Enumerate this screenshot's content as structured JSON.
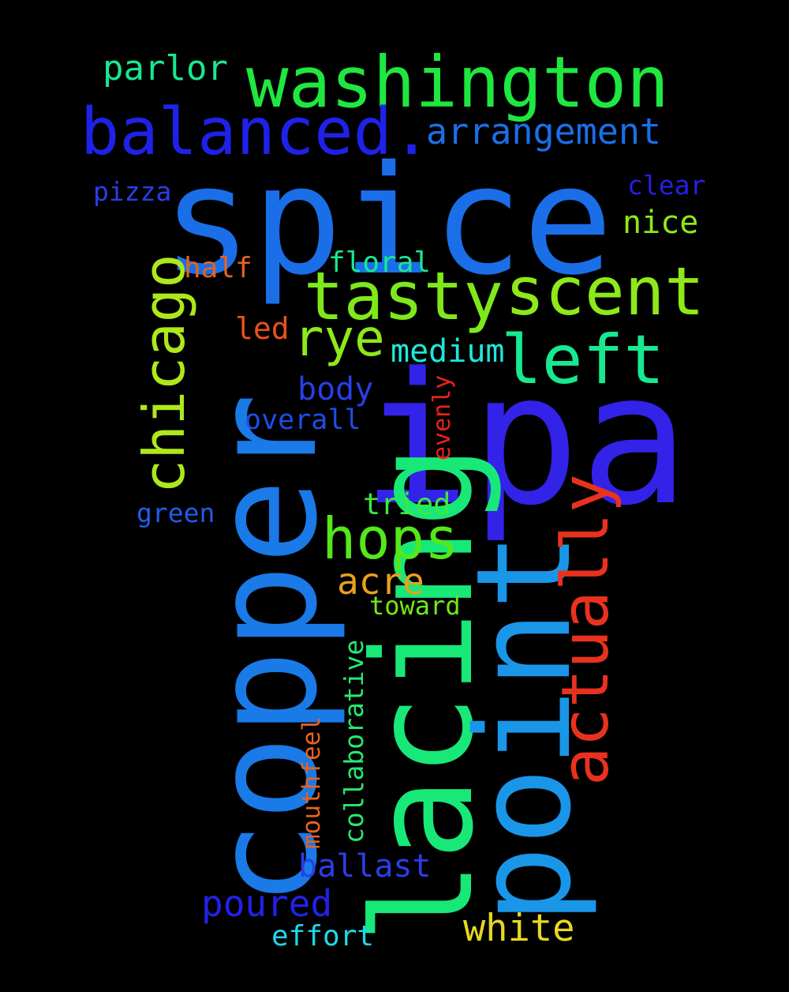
{
  "words": [
    {
      "id": "spice",
      "text": "spice",
      "color": "#1a6fe8",
      "vertical": false
    },
    {
      "id": "ipa",
      "text": "ipa",
      "color": "#3322e8",
      "vertical": false
    },
    {
      "id": "copper",
      "text": "copper",
      "color": "#1a7ae8",
      "vertical": true
    },
    {
      "id": "lacing",
      "text": "lacing",
      "color": "#18e878",
      "vertical": true
    },
    {
      "id": "point",
      "text": "point",
      "color": "#1a96e8",
      "vertical": true
    },
    {
      "id": "washington",
      "text": "washington",
      "color": "#1ee840",
      "vertical": false
    },
    {
      "id": "balanced",
      "text": "balanced.",
      "color": "#1e22e8",
      "vertical": false
    },
    {
      "id": "tasty",
      "text": "tasty",
      "color": "#7fe81a",
      "vertical": false
    },
    {
      "id": "scent",
      "text": "scent",
      "color": "#8fe81a",
      "vertical": false
    },
    {
      "id": "left",
      "text": "left",
      "color": "#18e890",
      "vertical": false
    },
    {
      "id": "actually",
      "text": "actually",
      "color": "#e8321e",
      "vertical": true
    },
    {
      "id": "chicago",
      "text": "chicago",
      "color": "#aee81a",
      "vertical": true
    },
    {
      "id": "hops",
      "text": "hops",
      "color": "#54e81a",
      "vertical": false
    },
    {
      "id": "rye",
      "text": "rye",
      "color": "#8fe81a",
      "vertical": false
    },
    {
      "id": "arrangement",
      "text": "arrangement",
      "color": "#1a6fe8",
      "vertical": false
    },
    {
      "id": "parlor",
      "text": "parlor",
      "color": "#18e88f",
      "vertical": false
    },
    {
      "id": "white",
      "text": "white",
      "color": "#e8d81e",
      "vertical": false
    },
    {
      "id": "poured",
      "text": "poured",
      "color": "#2420e8",
      "vertical": false
    },
    {
      "id": "ballast",
      "text": "ballast",
      "color": "#2a3ee8",
      "vertical": false
    },
    {
      "id": "acre",
      "text": "acre",
      "color": "#e8a01e",
      "vertical": false
    },
    {
      "id": "medium",
      "text": "medium",
      "color": "#1ee8d8",
      "vertical": false
    },
    {
      "id": "body",
      "text": "body",
      "color": "#2a3ee8",
      "vertical": false
    },
    {
      "id": "nice",
      "text": "nice",
      "color": "#8fe81a",
      "vertical": false
    },
    {
      "id": "floral",
      "text": "floral",
      "color": "#18e890",
      "vertical": false
    },
    {
      "id": "half",
      "text": "half",
      "color": "#e8621e",
      "vertical": false
    },
    {
      "id": "led",
      "text": "led",
      "color": "#e8521e",
      "vertical": false
    },
    {
      "id": "overall",
      "text": "overall",
      "color": "#1e4ee8",
      "vertical": false
    },
    {
      "id": "tried",
      "text": "tried",
      "color": "#3ee840",
      "vertical": false
    },
    {
      "id": "effort",
      "text": "effort",
      "color": "#1ed8e8",
      "vertical": false
    },
    {
      "id": "clear",
      "text": "clear",
      "color": "#2420e8",
      "vertical": false
    },
    {
      "id": "pizza",
      "text": "pizza",
      "color": "#2a3ee8",
      "vertical": false
    },
    {
      "id": "green",
      "text": "green",
      "color": "#1e5ee8",
      "vertical": false
    },
    {
      "id": "toward",
      "text": "toward",
      "color": "#70e81a",
      "vertical": false
    },
    {
      "id": "collaborative",
      "text": "collaborative",
      "color": "#28e870",
      "vertical": true
    },
    {
      "id": "mouthfeel",
      "text": "mouthfeel",
      "color": "#e8621e",
      "vertical": true
    },
    {
      "id": "evenly",
      "text": "evenly",
      "color": "#e8221e",
      "vertical": true
    }
  ]
}
